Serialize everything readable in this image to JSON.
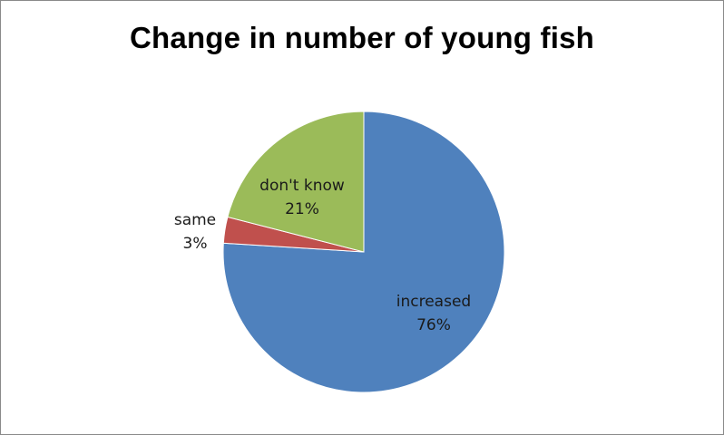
{
  "chart_data": {
    "type": "pie",
    "title": "Change in number of young fish",
    "slices": [
      {
        "label": "increased",
        "value": 76,
        "value_label": "76%",
        "color": "#4f81bd"
      },
      {
        "label": "same",
        "value": 3,
        "value_label": "3%",
        "color": "#c0504d"
      },
      {
        "label": "don't know",
        "value": 21,
        "value_label": "21%",
        "color": "#9bbb59"
      }
    ],
    "start_angle_deg": 0,
    "direction": "clockwise",
    "legend": "none"
  }
}
